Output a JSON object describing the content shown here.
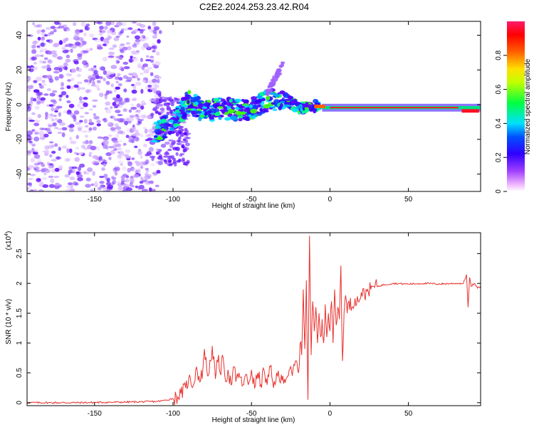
{
  "title": "C2E2.2024.253.23.42.R04",
  "chart_data": [
    {
      "type": "heatmap",
      "xlabel": "Height of straight line (km)",
      "ylabel": "Frequency (Hz)",
      "xlim": [
        -193,
        96
      ],
      "ylim": [
        -50,
        48
      ],
      "xticks": [
        -150,
        -100,
        -50,
        0,
        50
      ],
      "yticks": [
        -40,
        -20,
        0,
        20,
        40
      ],
      "colorbar": {
        "label": "Normalized spectral amplitude",
        "range": [
          0,
          1
        ],
        "ticks": [
          0.0,
          0.2,
          0.4,
          0.6,
          0.8
        ],
        "colormap": "rainbow",
        "colors": [
          "#ff66ff",
          "#6600ff",
          "#0000ff",
          "#00ffff",
          "#00ff00",
          "#ffff00",
          "#ff8000",
          "#ff0000",
          "#ff1a66"
        ]
      },
      "signal_track": {
        "description_points_x": [
          -110,
          -100,
          -90,
          -80,
          -70,
          -60,
          -50,
          -40,
          -30,
          -20,
          -10,
          0,
          20,
          40,
          60,
          80,
          90
        ],
        "frequency_y": [
          -16,
          -10,
          2,
          -4,
          -2,
          -3,
          -2,
          2,
          4,
          -2,
          -1,
          -1,
          -2,
          -2,
          -2,
          -2,
          -4
        ]
      }
    },
    {
      "type": "line",
      "xlabel": "Height of straight line (km)",
      "ylabel": "SNR (10 * v/v)",
      "yscale_label": "(x10",
      "yscale_exp": "4",
      "y_unit_multiplier": 10000,
      "xlim": [
        -193,
        96
      ],
      "ylim": [
        -0.05,
        2.85
      ],
      "xticks": [
        -150,
        -100,
        -50,
        0,
        50
      ],
      "yticks": [
        0.0,
        0.5,
        1.0,
        1.5,
        2.0,
        2.5
      ],
      "series": [
        {
          "color": "#e8322e",
          "x": [
            -193,
            -160,
            -130,
            -110,
            -105,
            -100,
            -97,
            -95,
            -92,
            -90,
            -87,
            -85,
            -83,
            -81,
            -80,
            -78,
            -76,
            -75,
            -73,
            -71,
            -70,
            -68,
            -66,
            -65,
            -63,
            -61,
            -60,
            -58,
            -56,
            -54,
            -52,
            -50,
            -48,
            -46,
            -44,
            -42,
            -40,
            -38,
            -36,
            -34,
            -32,
            -30,
            -28,
            -26,
            -24,
            -22,
            -20,
            -19,
            -18,
            -17,
            -16,
            -15,
            -14,
            -13,
            -12,
            -11,
            -10,
            -9,
            -8,
            -7,
            -6,
            -5,
            -4,
            -3,
            -2,
            -1,
            0,
            1,
            2,
            3,
            4,
            5,
            6,
            7,
            8,
            9,
            10,
            11,
            12,
            14,
            16,
            18,
            20,
            22,
            24,
            26,
            28,
            30,
            35,
            40,
            50,
            60,
            70,
            80,
            85,
            87,
            88,
            89,
            90,
            92,
            94,
            96
          ],
          "y": [
            0.0,
            0.0,
            0.01,
            0.02,
            0.04,
            0.07,
            0.1,
            0.15,
            0.25,
            0.4,
            0.3,
            0.6,
            0.35,
            0.55,
            0.9,
            0.45,
            0.7,
            0.95,
            0.4,
            0.8,
            0.5,
            0.75,
            0.35,
            0.55,
            0.3,
            0.6,
            0.35,
            0.5,
            0.28,
            0.45,
            0.3,
            0.55,
            0.25,
            0.5,
            0.3,
            0.55,
            0.3,
            0.6,
            0.25,
            0.5,
            0.35,
            0.45,
            0.4,
            0.55,
            0.45,
            0.7,
            0.5,
            1.0,
            0.8,
            1.9,
            0.9,
            2.05,
            0.05,
            2.8,
            0.8,
            1.7,
            1.2,
            1.6,
            1.0,
            1.5,
            1.1,
            1.4,
            1.0,
            1.65,
            1.1,
            1.5,
            1.2,
            1.7,
            1.0,
            1.9,
            1.3,
            1.6,
            1.4,
            2.3,
            0.7,
            1.5,
            1.8,
            1.5,
            1.7,
            1.6,
            1.75,
            1.7,
            1.85,
            1.8,
            1.9,
            1.9,
            1.95,
            1.95,
            1.98,
            2.0,
            1.99,
            2.0,
            1.99,
            2.0,
            2.0,
            2.15,
            1.6,
            2.1,
            1.95,
            2.0,
            1.92,
            1.95
          ]
        }
      ]
    }
  ]
}
